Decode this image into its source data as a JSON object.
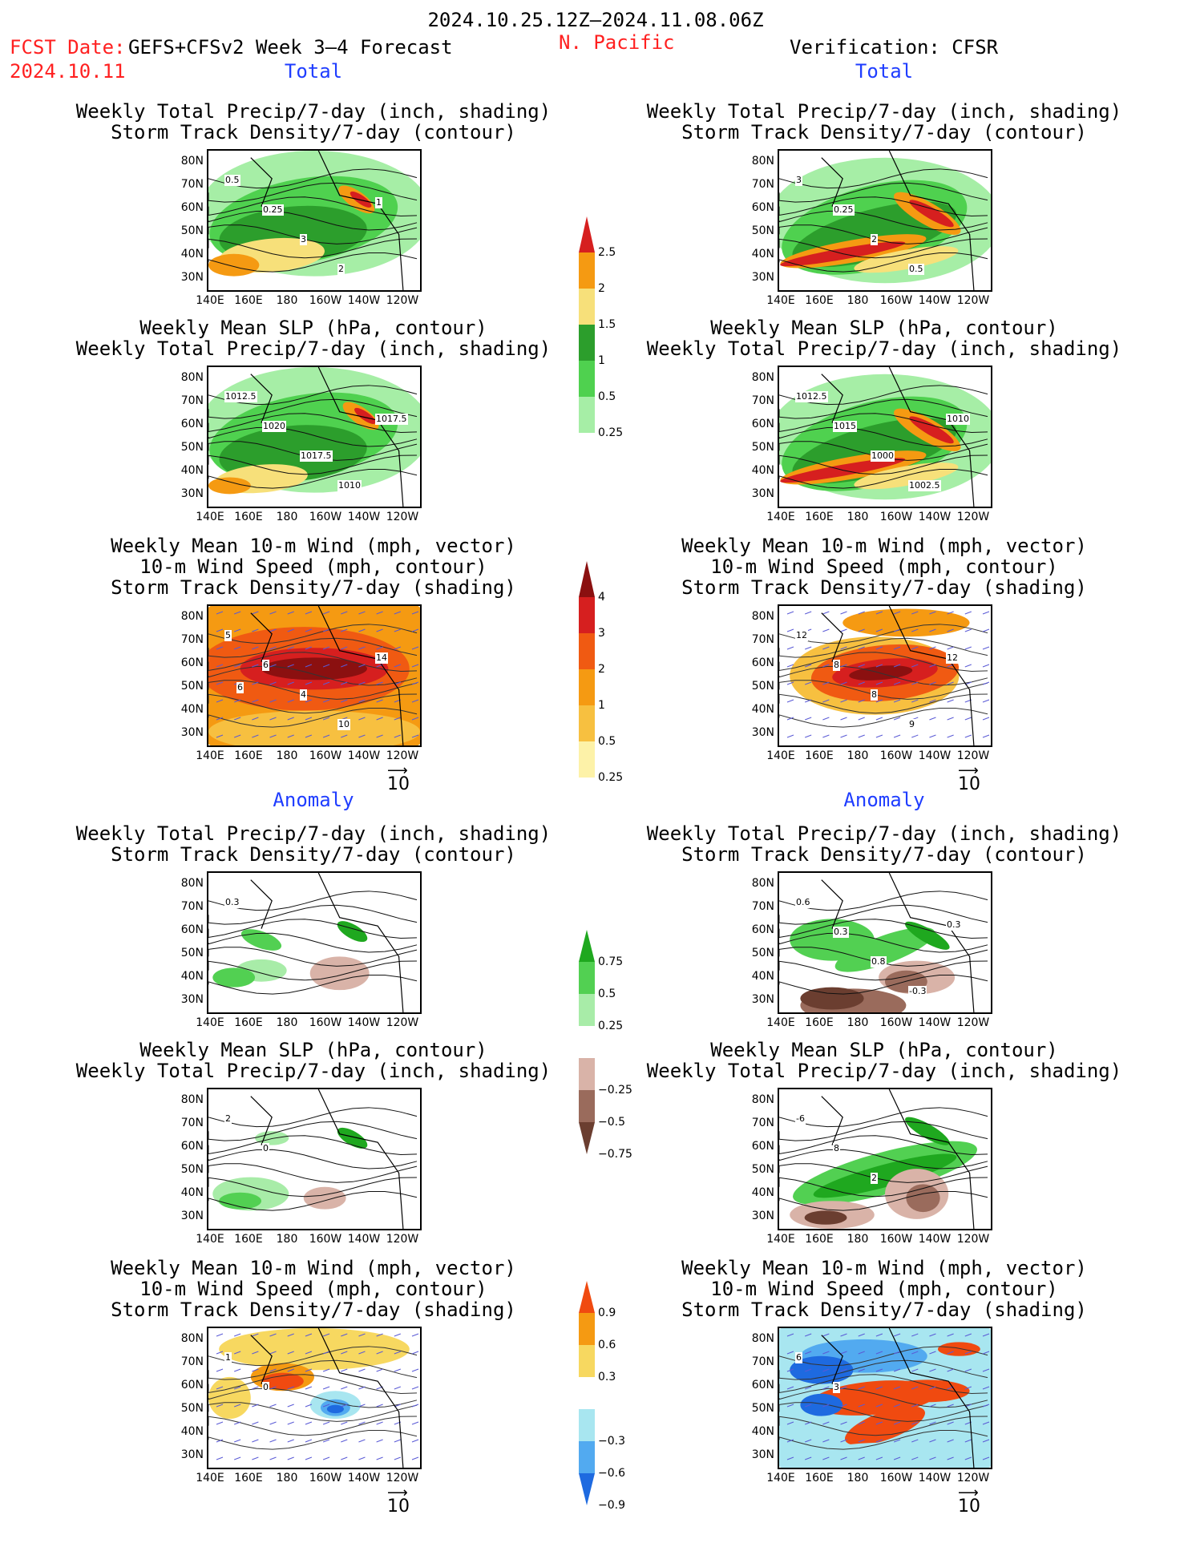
{
  "header": {
    "date_range": "2024.10.25.12Z–2024.11.08.06Z",
    "fcst_date_label": "FCST Date:",
    "forecast_name": "GEFS+CFSv2 Week 3–4 Forecast",
    "fcst_date": "2024.10.11",
    "region": "N. Pacific",
    "verification": "Verification: CFSR"
  },
  "sections": {
    "total": "Total",
    "anomaly": "Anomaly"
  },
  "titles": {
    "precip_storm": "Weekly Total Precip/7-day (inch, shading)\nStorm Track Density/7-day (contour)",
    "slp_precip": "Weekly Mean SLP (hPa, contour)\nWeekly Total Precip/7-day (inch, shading)",
    "wind_storm": "Weekly Mean 10-m Wind (mph, vector)\n10-m Wind Speed (mph, contour)\nStorm Track Density/7-day (shading)"
  },
  "axes": {
    "lat": [
      "80N",
      "70N",
      "60N",
      "50N",
      "40N",
      "30N"
    ],
    "lon": [
      "140E",
      "160E",
      "180",
      "160W",
      "140W",
      "120W"
    ]
  },
  "vector_ref": "10",
  "colorbars": {
    "precip_total": {
      "labels": [
        "2.5",
        "2",
        "1.5",
        "1",
        "0.5",
        "0.25"
      ],
      "colors": [
        "#d61f1f",
        "#f59a12",
        "#f7e07a",
        "#2c9e2c",
        "#4fd14f",
        "#a6eea6"
      ]
    },
    "storm_total": {
      "labels": [
        "4",
        "3",
        "2",
        "1",
        "0.5",
        "0.25"
      ],
      "colors": [
        "#8b1010",
        "#d61f1f",
        "#f05a12",
        "#f59a12",
        "#f7c040",
        "#fdf2a8"
      ]
    },
    "precip_anom": {
      "labels": [
        "0.75",
        "0.5",
        "0.25",
        "−0.25",
        "−0.5",
        "−0.75"
      ],
      "colors": [
        "#1fa81f",
        "#52d052",
        "#a8eca8",
        "#ffffff",
        "#d9b3a8",
        "#9a6b5c",
        "#6b3e30"
      ]
    },
    "storm_anom": {
      "labels": [
        "0.9",
        "0.6",
        "0.3",
        "−0.3",
        "−0.6",
        "−0.9"
      ],
      "colors": [
        "#f04a10",
        "#f59a12",
        "#f7d860",
        "#ffffff",
        "#a8e6f0",
        "#52aaf0",
        "#1e6ae0"
      ]
    }
  },
  "panel_labels": {
    "l1": [
      "0.5",
      "0.25",
      "3",
      "2",
      "1"
    ],
    "r1": [
      "3",
      "0.25",
      "2",
      "0.5"
    ],
    "l2": [
      "1012.5",
      "1020",
      "1017.5",
      "1010",
      "1017.5"
    ],
    "r2": [
      "1012.5",
      "1015",
      "1000",
      "1002.5",
      "1010"
    ],
    "l3": [
      "5",
      "6",
      "4",
      "10",
      "14",
      "6"
    ],
    "r3": [
      "12",
      "8",
      "8",
      "9",
      "12"
    ],
    "l4": [
      "0.3"
    ],
    "r4": [
      "0.6",
      "0.3",
      "0.8",
      "-0.3",
      "0.3"
    ],
    "l5": [
      "2",
      "0"
    ],
    "r5": [
      "-6",
      "8",
      "2"
    ],
    "l6": [
      "1",
      "0"
    ],
    "r6": [
      "6",
      "3"
    ]
  },
  "colors": {
    "accent_red": "#ff2020",
    "accent_blue": "#1f3dff"
  }
}
